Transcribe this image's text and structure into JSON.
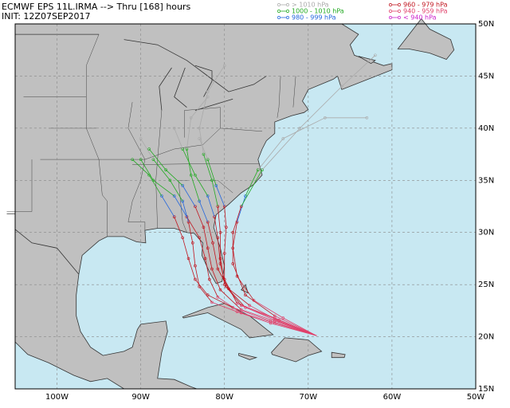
{
  "header": {
    "title": "ECMWF EPS 11L.IRMA --> Thru [168] hours",
    "init": "INIT: 12Z07SEP2017"
  },
  "legend": [
    {
      "label": "> 1010 hPa",
      "color": "#aaaaaa"
    },
    {
      "label": "960 - 979 hPa",
      "color": "#c0141e"
    },
    {
      "label": "1000 - 1010 hPa",
      "color": "#22aa22"
    },
    {
      "label": "940 - 959 hPa",
      "color": "#e0406a"
    },
    {
      "label": "980 - 999 hPa",
      "color": "#2266dd"
    },
    {
      "label": "< 940 hPa",
      "color": "#cc22cc"
    }
  ],
  "map": {
    "lonlim": [
      -105,
      -50
    ],
    "latlim": [
      15,
      50
    ],
    "lon_ticks": [
      {
        "value": -100,
        "label": "100W"
      },
      {
        "value": -90,
        "label": "90W"
      },
      {
        "value": -80,
        "label": "80W"
      },
      {
        "value": -70,
        "label": "70W"
      },
      {
        "value": -60,
        "label": "60W"
      },
      {
        "value": -50,
        "label": "50W"
      }
    ],
    "lat_ticks": [
      {
        "value": 50,
        "label": "50N"
      },
      {
        "value": 45,
        "label": "45N"
      },
      {
        "value": 40,
        "label": "40N"
      },
      {
        "value": 35,
        "label": "35N"
      },
      {
        "value": 30,
        "label": "30N"
      },
      {
        "value": 25,
        "label": "25N"
      },
      {
        "value": 20,
        "label": "20N"
      },
      {
        "value": 15,
        "label": "15N"
      }
    ]
  }
}
